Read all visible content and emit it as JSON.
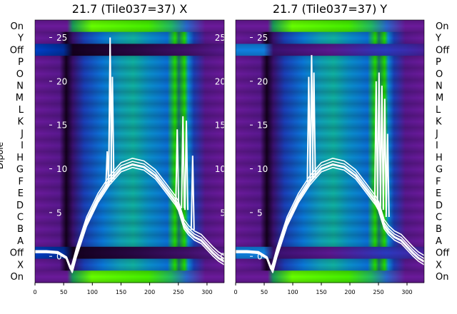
{
  "chart_data": {
    "type": "heatmap",
    "y_axis_label": "Dipole",
    "dipole_labels": [
      "On",
      "Y",
      "Off",
      "P",
      "O",
      "N",
      "M",
      "L",
      "K",
      "J",
      "I",
      "H",
      "G",
      "F",
      "E",
      "D",
      "C",
      "B",
      "A",
      "Off",
      "X",
      "On"
    ],
    "colors": {
      "purple": "#6a1a9a",
      "dark": "#14001e",
      "green": "#22dd00",
      "lime": "#66ff00",
      "blue": "#0055dd",
      "teal": "#10a8a8",
      "line": "#ffffff"
    },
    "panels": [
      {
        "title": "21.7 (Tile037=37) X",
        "xlim": [
          0,
          330
        ],
        "xticks": [
          0,
          50,
          100,
          150,
          200,
          250,
          300
        ],
        "overlay_ylim": [
          -3,
          27
        ],
        "overlay_yticks": [
          0,
          5,
          10,
          15,
          20,
          25
        ],
        "overlay_curve": {
          "x": [
            0,
            20,
            40,
            55,
            62,
            65,
            72,
            90,
            110,
            130,
            150,
            170,
            190,
            210,
            230,
            245,
            250,
            260,
            268,
            278,
            290,
            300,
            310,
            320,
            330
          ],
          "y": [
            0.5,
            0.5,
            0.4,
            -0.2,
            -1.4,
            -1.5,
            0.2,
            3.8,
            6.5,
            8.5,
            10,
            10.5,
            10.2,
            9.2,
            7.5,
            6.2,
            5.6,
            3.5,
            2.8,
            2.2,
            1.8,
            1.1,
            0.4,
            -0.2,
            -0.6
          ]
        },
        "overlay_spikes": [
          {
            "x": 126,
            "y_top": 12,
            "y_base": 8
          },
          {
            "x": 131,
            "y_top": 25,
            "y_base": 8.5
          },
          {
            "x": 135,
            "y_top": 20.5,
            "y_base": 8.8
          },
          {
            "x": 248,
            "y_top": 14.5,
            "y_base": 6
          },
          {
            "x": 258,
            "y_top": 16,
            "y_base": 5.5
          },
          {
            "x": 264,
            "y_top": 15.5,
            "y_base": 5.3
          },
          {
            "x": 275,
            "y_top": 11.5,
            "y_base": 3
          }
        ]
      },
      {
        "title": "21.7 (Tile037=37) Y",
        "xlim": [
          0,
          330
        ],
        "xticks": [
          0,
          50,
          100,
          150,
          200,
          250,
          300
        ],
        "overlay_ylim": [
          -3,
          27
        ],
        "overlay_yticks": [
          0,
          5,
          10,
          15,
          20,
          25
        ],
        "overlay_curve": {
          "x": [
            0,
            20,
            40,
            55,
            62,
            65,
            72,
            90,
            110,
            130,
            150,
            170,
            190,
            210,
            230,
            245,
            250,
            260,
            268,
            278,
            290,
            300,
            310,
            320,
            330
          ],
          "y": [
            0.5,
            0.5,
            0.4,
            -0.2,
            -1.4,
            -1.5,
            0.2,
            3.8,
            6.5,
            8.5,
            10,
            10.5,
            10.2,
            9.2,
            7.5,
            6.2,
            5.6,
            3.5,
            2.8,
            2.2,
            1.8,
            1.1,
            0.4,
            -0.2,
            -0.6
          ]
        },
        "overlay_spikes": [
          {
            "x": 128,
            "y_top": 20.5,
            "y_base": 8.5
          },
          {
            "x": 133,
            "y_top": 23,
            "y_base": 8.8
          },
          {
            "x": 137,
            "y_top": 21,
            "y_base": 9
          },
          {
            "x": 246,
            "y_top": 20,
            "y_base": 6
          },
          {
            "x": 251,
            "y_top": 21,
            "y_base": 5.8
          },
          {
            "x": 256,
            "y_top": 19.5,
            "y_base": 5.5
          },
          {
            "x": 261,
            "y_top": 18,
            "y_base": 5.3
          },
          {
            "x": 266,
            "y_top": 14,
            "y_base": 4.5
          }
        ]
      }
    ]
  }
}
